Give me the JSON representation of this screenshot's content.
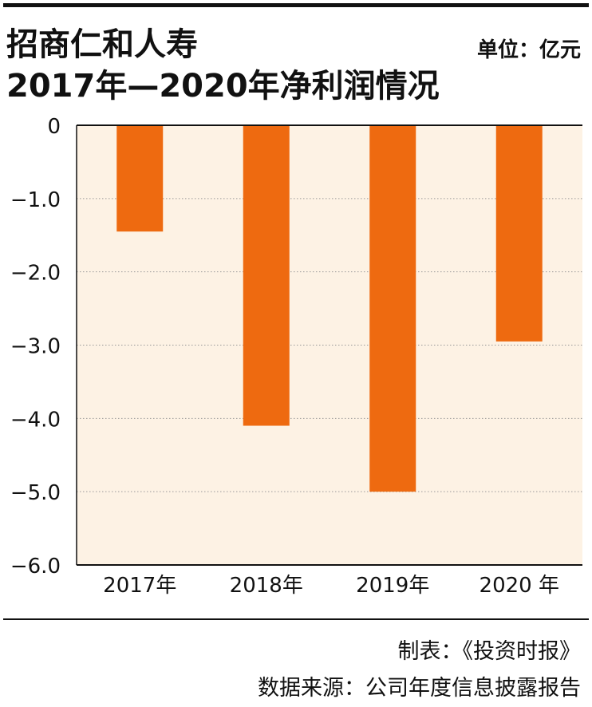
{
  "header": {
    "title_line1": "招商仁和人寿",
    "title_line2": "2017年—2020年净利润情况",
    "unit": "单位：亿元"
  },
  "footer": {
    "credit": "制表：《投资时报》",
    "source": "数据来源：公司年度信息披露报告"
  },
  "chart_data": {
    "type": "bar",
    "categories": [
      "2017年",
      "2018年",
      "2019年",
      "2020 年"
    ],
    "values": [
      -1.45,
      -4.1,
      -5.0,
      -2.95
    ],
    "yticks": [
      "0",
      "−1.0",
      "−2.0",
      "−3.0",
      "−4.0",
      "−5.0",
      "−6.0"
    ],
    "ytick_values": [
      0,
      -1,
      -2,
      -3,
      -4,
      -5,
      -6
    ],
    "ylim": [
      -6,
      0
    ],
    "grid": true,
    "colors": {
      "bar": "#EE6A10",
      "plot_bg": "#FDF2E4",
      "grid": "#999999",
      "axis": "#111111"
    }
  }
}
